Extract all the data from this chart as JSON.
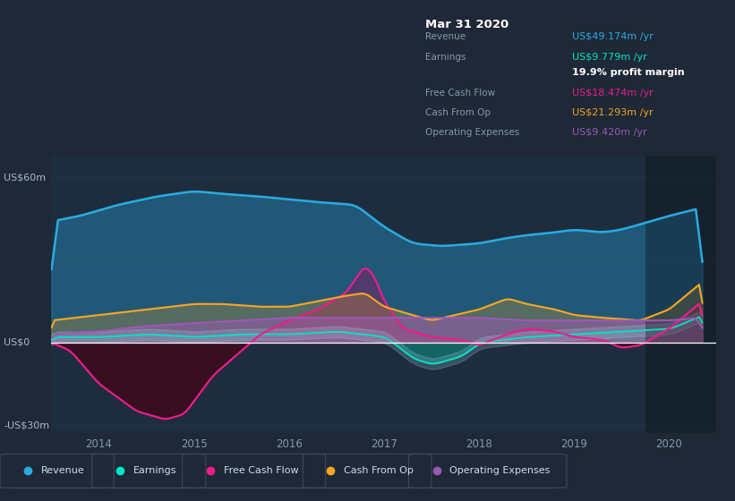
{
  "bg_color": "#1e2836",
  "plot_bg_color": "#1e2d3e",
  "plot_bg_top": "#16202c",
  "ylim": [
    -33,
    68
  ],
  "xlim_start": 2013.5,
  "xlim_end": 2020.5,
  "xticks": [
    2014,
    2015,
    2016,
    2017,
    2018,
    2019,
    2020
  ],
  "y_label_60": "US$60m",
  "y_label_0": "US$0",
  "y_label_30": "-US$30m",
  "colors": {
    "revenue": "#29abe2",
    "earnings": "#00e5c5",
    "free_cash_flow": "#e91e8c",
    "cash_from_op": "#f5a623",
    "operating_expenses": "#9b59b6"
  },
  "legend_items": [
    "Revenue",
    "Earnings",
    "Free Cash Flow",
    "Cash From Op",
    "Operating Expenses"
  ],
  "tooltip_bg": "#080c10",
  "tooltip_border": "#2a3a4a",
  "tooltip_date": "Mar 31 2020",
  "tooltip_rows": [
    {
      "label": "Revenue",
      "value": "US$49.174m /yr",
      "color": "#29abe2"
    },
    {
      "label": "Earnings",
      "value": "US$9.779m /yr",
      "color": "#00e5c5"
    },
    {
      "label": "",
      "value": "19.9% profit margin",
      "color": "#ffffff"
    },
    {
      "label": "Free Cash Flow",
      "value": "US$18.474m /yr",
      "color": "#e91e8c"
    },
    {
      "label": "Cash From Op",
      "value": "US$21.293m /yr",
      "color": "#f5a623"
    },
    {
      "label": "Operating Expenses",
      "value": "US$9.420m /yr",
      "color": "#9b59b6"
    }
  ],
  "highlight_x_start": 2019.75
}
